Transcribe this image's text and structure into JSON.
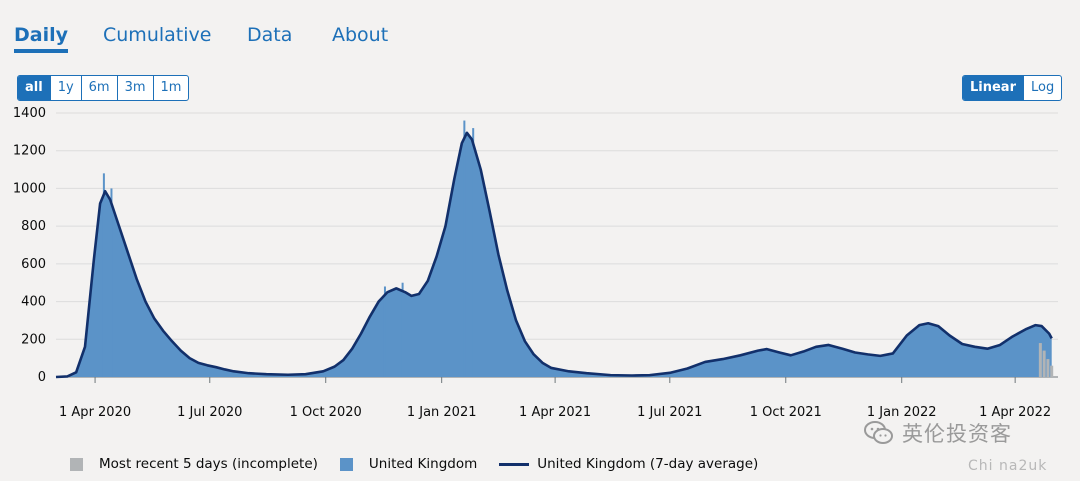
{
  "tabs": [
    {
      "label": "Daily",
      "active": true
    },
    {
      "label": "Cumulative",
      "active": false
    },
    {
      "label": "Data",
      "active": false
    },
    {
      "label": "About",
      "active": false
    }
  ],
  "range_buttons": [
    {
      "label": "all",
      "active": true
    },
    {
      "label": "1y",
      "active": false
    },
    {
      "label": "6m",
      "active": false
    },
    {
      "label": "3m",
      "active": false
    },
    {
      "label": "1m",
      "active": false
    }
  ],
  "scale_buttons": [
    {
      "label": "Linear",
      "active": true
    },
    {
      "label": "Log",
      "active": false
    }
  ],
  "colors": {
    "accent": "#1d70b8",
    "bar": "#5b93c8",
    "line": "#12306b",
    "incomplete": "#b1b4b6",
    "grid": "#dcdcdc"
  },
  "chart_data": {
    "type": "bar",
    "y_axis": {
      "min": 0,
      "max": 1400,
      "ticks": [
        0,
        200,
        400,
        600,
        800,
        1000,
        1200,
        1400
      ]
    },
    "x_axis": {
      "start": "2020-03-01",
      "end": "2022-05-05",
      "ticks": [
        {
          "date": "2020-04-01",
          "label": "1 Apr 2020"
        },
        {
          "date": "2020-07-01",
          "label": "1 Jul 2020"
        },
        {
          "date": "2020-10-01",
          "label": "1 Oct 2020"
        },
        {
          "date": "2021-01-01",
          "label": "1 Jan 2021"
        },
        {
          "date": "2021-04-01",
          "label": "1 Apr 2021"
        },
        {
          "date": "2021-07-01",
          "label": "1 Jul 2021"
        },
        {
          "date": "2021-10-01",
          "label": "1 Oct 2021"
        },
        {
          "date": "2022-01-01",
          "label": "1 Jan 2022"
        },
        {
          "date": "2022-04-01",
          "label": "1 Apr 2022"
        }
      ]
    },
    "grid": true,
    "legend_position": "bottom",
    "series": [
      {
        "name": "Most recent 5 days (incomplete)",
        "kind": "bar",
        "color": "#b1b4b6",
        "values": [
          {
            "date": "2022-04-21",
            "y": 180
          },
          {
            "date": "2022-04-24",
            "y": 140
          },
          {
            "date": "2022-04-27",
            "y": 95
          },
          {
            "date": "2022-04-30",
            "y": 60
          }
        ]
      },
      {
        "name": "United Kingdom",
        "kind": "bar",
        "color": "#5b93c8",
        "spikes": [
          {
            "date": "2020-04-08",
            "y": 1080
          },
          {
            "date": "2020-04-14",
            "y": 1000
          },
          {
            "date": "2020-11-17",
            "y": 480
          },
          {
            "date": "2020-12-01",
            "y": 500
          },
          {
            "date": "2021-01-19",
            "y": 1360
          },
          {
            "date": "2021-01-26",
            "y": 1320
          }
        ]
      },
      {
        "name": "United Kingdom (7-day average)",
        "kind": "line",
        "color": "#12306b",
        "values": [
          {
            "date": "2020-03-01",
            "y": 0
          },
          {
            "date": "2020-03-10",
            "y": 3
          },
          {
            "date": "2020-03-17",
            "y": 25
          },
          {
            "date": "2020-03-24",
            "y": 160
          },
          {
            "date": "2020-03-31",
            "y": 620
          },
          {
            "date": "2020-04-05",
            "y": 920
          },
          {
            "date": "2020-04-09",
            "y": 985
          },
          {
            "date": "2020-04-13",
            "y": 940
          },
          {
            "date": "2020-04-20",
            "y": 800
          },
          {
            "date": "2020-04-27",
            "y": 660
          },
          {
            "date": "2020-05-04",
            "y": 520
          },
          {
            "date": "2020-05-11",
            "y": 400
          },
          {
            "date": "2020-05-18",
            "y": 310
          },
          {
            "date": "2020-05-25",
            "y": 245
          },
          {
            "date": "2020-06-01",
            "y": 190
          },
          {
            "date": "2020-06-08",
            "y": 140
          },
          {
            "date": "2020-06-15",
            "y": 100
          },
          {
            "date": "2020-06-22",
            "y": 75
          },
          {
            "date": "2020-06-29",
            "y": 62
          },
          {
            "date": "2020-07-06",
            "y": 52
          },
          {
            "date": "2020-07-13",
            "y": 40
          },
          {
            "date": "2020-07-20",
            "y": 30
          },
          {
            "date": "2020-08-01",
            "y": 20
          },
          {
            "date": "2020-08-15",
            "y": 15
          },
          {
            "date": "2020-09-01",
            "y": 12
          },
          {
            "date": "2020-09-15",
            "y": 15
          },
          {
            "date": "2020-09-29",
            "y": 30
          },
          {
            "date": "2020-10-08",
            "y": 55
          },
          {
            "date": "2020-10-15",
            "y": 90
          },
          {
            "date": "2020-10-22",
            "y": 150
          },
          {
            "date": "2020-10-29",
            "y": 230
          },
          {
            "date": "2020-11-05",
            "y": 320
          },
          {
            "date": "2020-11-12",
            "y": 400
          },
          {
            "date": "2020-11-19",
            "y": 450
          },
          {
            "date": "2020-11-26",
            "y": 470
          },
          {
            "date": "2020-12-03",
            "y": 450
          },
          {
            "date": "2020-12-08",
            "y": 430
          },
          {
            "date": "2020-12-14",
            "y": 440
          },
          {
            "date": "2020-12-21",
            "y": 510
          },
          {
            "date": "2020-12-28",
            "y": 640
          },
          {
            "date": "2021-01-04",
            "y": 800
          },
          {
            "date": "2021-01-11",
            "y": 1050
          },
          {
            "date": "2021-01-17",
            "y": 1240
          },
          {
            "date": "2021-01-21",
            "y": 1295
          },
          {
            "date": "2021-01-25",
            "y": 1260
          },
          {
            "date": "2021-02-01",
            "y": 1100
          },
          {
            "date": "2021-02-08",
            "y": 880
          },
          {
            "date": "2021-02-15",
            "y": 650
          },
          {
            "date": "2021-02-22",
            "y": 460
          },
          {
            "date": "2021-03-01",
            "y": 300
          },
          {
            "date": "2021-03-08",
            "y": 190
          },
          {
            "date": "2021-03-15",
            "y": 120
          },
          {
            "date": "2021-03-22",
            "y": 75
          },
          {
            "date": "2021-03-29",
            "y": 48
          },
          {
            "date": "2021-04-12",
            "y": 30
          },
          {
            "date": "2021-04-26",
            "y": 20
          },
          {
            "date": "2021-05-15",
            "y": 10
          },
          {
            "date": "2021-06-01",
            "y": 8
          },
          {
            "date": "2021-06-15",
            "y": 10
          },
          {
            "date": "2021-07-01",
            "y": 22
          },
          {
            "date": "2021-07-15",
            "y": 45
          },
          {
            "date": "2021-07-29",
            "y": 80
          },
          {
            "date": "2021-08-12",
            "y": 95
          },
          {
            "date": "2021-08-26",
            "y": 115
          },
          {
            "date": "2021-09-09",
            "y": 140
          },
          {
            "date": "2021-09-16",
            "y": 148
          },
          {
            "date": "2021-09-26",
            "y": 130
          },
          {
            "date": "2021-10-05",
            "y": 115
          },
          {
            "date": "2021-10-15",
            "y": 135
          },
          {
            "date": "2021-10-25",
            "y": 160
          },
          {
            "date": "2021-11-04",
            "y": 170
          },
          {
            "date": "2021-11-15",
            "y": 150
          },
          {
            "date": "2021-11-25",
            "y": 130
          },
          {
            "date": "2021-12-05",
            "y": 120
          },
          {
            "date": "2021-12-15",
            "y": 112
          },
          {
            "date": "2021-12-25",
            "y": 125
          },
          {
            "date": "2022-01-05",
            "y": 220
          },
          {
            "date": "2022-01-15",
            "y": 275
          },
          {
            "date": "2022-01-22",
            "y": 285
          },
          {
            "date": "2022-01-30",
            "y": 270
          },
          {
            "date": "2022-02-08",
            "y": 220
          },
          {
            "date": "2022-02-18",
            "y": 175
          },
          {
            "date": "2022-02-28",
            "y": 160
          },
          {
            "date": "2022-03-10",
            "y": 150
          },
          {
            "date": "2022-03-20",
            "y": 170
          },
          {
            "date": "2022-03-30",
            "y": 215
          },
          {
            "date": "2022-04-10",
            "y": 255
          },
          {
            "date": "2022-04-17",
            "y": 275
          },
          {
            "date": "2022-04-22",
            "y": 270
          },
          {
            "date": "2022-04-28",
            "y": 230
          },
          {
            "date": "2022-04-30",
            "y": 205
          }
        ]
      }
    ]
  },
  "legend": [
    {
      "label": "Most recent 5 days (incomplete)",
      "type": "square",
      "color": "#b1b4b6"
    },
    {
      "label": "United Kingdom",
      "type": "square",
      "color": "#5b93c8"
    },
    {
      "label": "United Kingdom (7-day average)",
      "type": "line",
      "color": "#12306b"
    }
  ],
  "watermark": {
    "text": "英伦投资客",
    "sub": "Chi na2uk"
  }
}
